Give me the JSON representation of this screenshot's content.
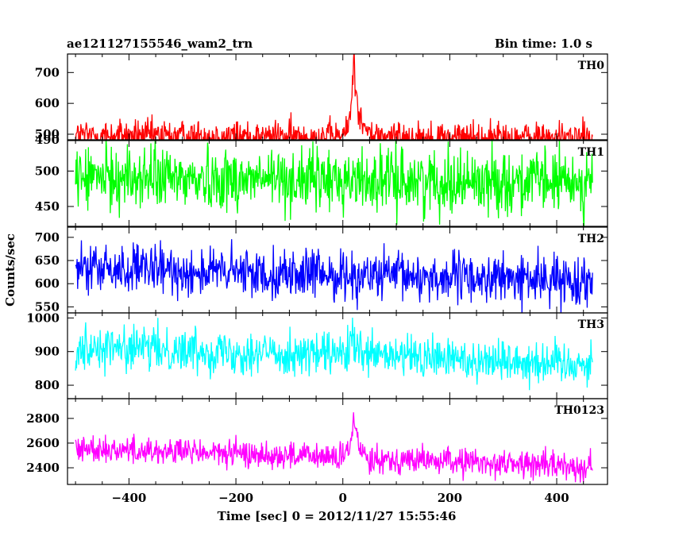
{
  "header": {
    "title": "ae121127155546_wam2_trn",
    "bin_time": "Bin time: 1.0 s"
  },
  "axes": {
    "ylabel": "Counts/sec",
    "xlabel": "Time [sec] 0 = 2012/11/27 15:55:46"
  },
  "chart_data": {
    "type": "line",
    "shared_x": {
      "label": "Time [sec] 0 = 2012/11/27 15:55:46",
      "range": [
        -515,
        495
      ],
      "ticks": [
        -400,
        -200,
        0,
        200,
        400
      ],
      "tick_labels": [
        "−400",
        "−200",
        "0",
        "200",
        "400"
      ],
      "data_start": -500,
      "data_end": 467,
      "bin": 1.0
    },
    "series": [
      {
        "name": "TH0",
        "color": "#ff0000",
        "ylim": [
          482,
          760
        ],
        "yticks": [
          500,
          600,
          700
        ],
        "ytick_labels": [
          "500",
          "600",
          "700"
        ],
        "top_label_overlap": "490",
        "baseline": 497,
        "trend_end": 489,
        "noise": 25,
        "burst": {
          "peak_time": 20,
          "amplitude": 260,
          "rise": 5,
          "decay": 9
        }
      },
      {
        "name": "TH1",
        "color": "#00ff00",
        "ylim": [
          422,
          543
        ],
        "yticks": [
          450,
          500
        ],
        "ytick_labels": [
          "450",
          "500"
        ],
        "baseline": 491,
        "trend_end": 484,
        "noise": 22,
        "burst": null
      },
      {
        "name": "TH2",
        "color": "#0000ff",
        "ylim": [
          537,
          722
        ],
        "yticks": [
          550,
          600,
          650,
          700
        ],
        "ytick_labels": [
          "550",
          "600",
          "650",
          "700"
        ],
        "baseline": 632,
        "trend_end": 606,
        "noise": 26,
        "burst": null
      },
      {
        "name": "TH3",
        "color": "#00ffff",
        "ylim": [
          760,
          1015
        ],
        "yticks": [
          800,
          900,
          1000
        ],
        "ytick_labels": [
          "800",
          "900",
          "1000"
        ],
        "baseline": 915,
        "trend_end": 865,
        "noise": 32,
        "burst": {
          "peak_time": 18,
          "amplitude": 60,
          "rise": 4,
          "decay": 6
        }
      },
      {
        "name": "TH0123",
        "color": "#ff00ff",
        "ylim": [
          2265,
          2960
        ],
        "yticks": [
          2400,
          2600,
          2800
        ],
        "ytick_labels": [
          "2400",
          "2600",
          "2800"
        ],
        "baseline": 2560,
        "trend_end": 2410,
        "noise": 55,
        "burst": {
          "peak_time": 20,
          "amplitude": 330,
          "rise": 5,
          "decay": 10
        }
      }
    ]
  }
}
